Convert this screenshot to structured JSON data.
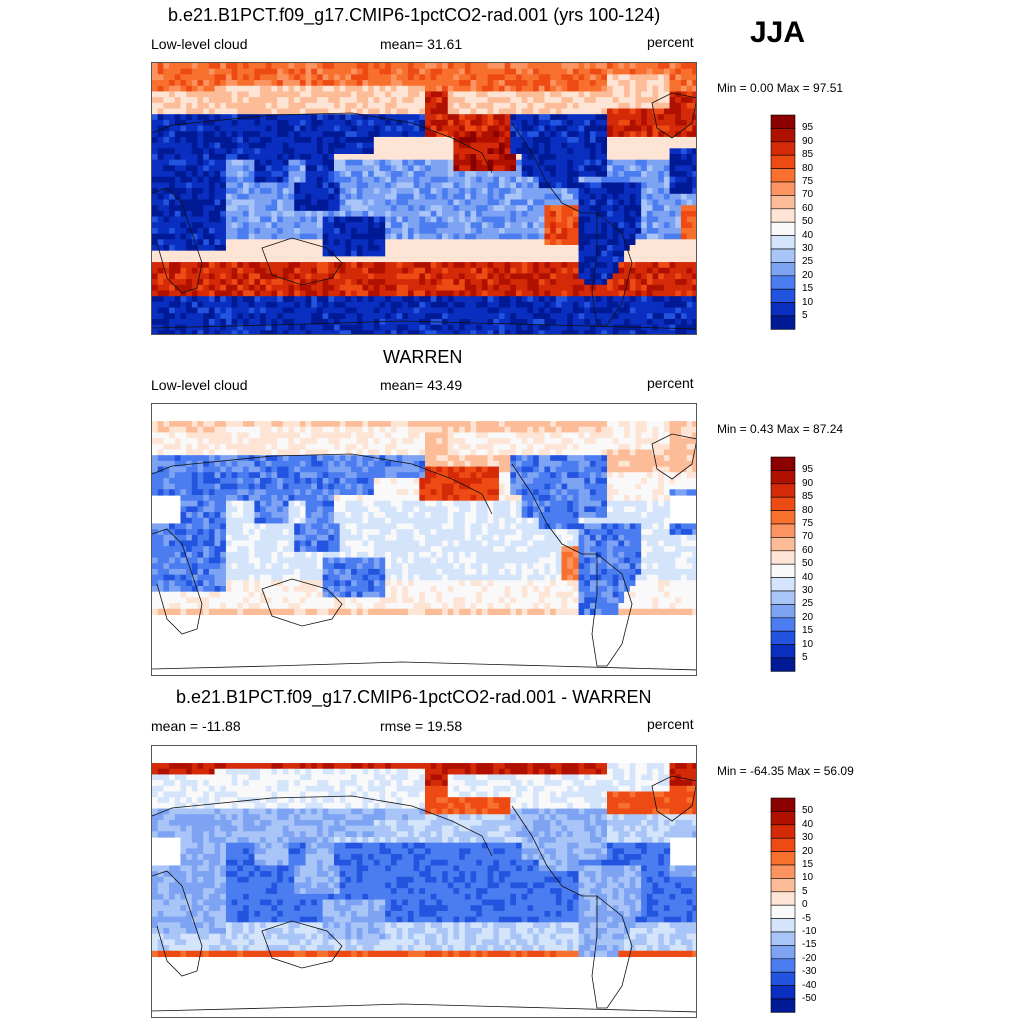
{
  "season": "JJA",
  "panels": [
    {
      "title": "b.e21.B1PCT.f09_g17.CMIP6-1pctCO2-rad.001 (yrs 100-124)",
      "left": "Low-level cloud",
      "center": "mean=  31.61",
      "right": "percent",
      "minmax": "Min =   0.00 Max =  97.51",
      "colorbar": [
        "95",
        "90",
        "85",
        "80",
        "75",
        "70",
        "60",
        "50",
        "40",
        "30",
        "25",
        "20",
        "15",
        "10",
        "5"
      ],
      "colors": [
        "#8b0000",
        "#b01000",
        "#d42a08",
        "#ee4a14",
        "#f8702e",
        "#fb9460",
        "#fcbc98",
        "#fde4d4",
        "#f9f9f9",
        "#d4e5fb",
        "#a9c4f6",
        "#7da3f2",
        "#4b7df0",
        "#2254e0",
        "#0a2fc0",
        "#001a96"
      ],
      "kind": "model"
    },
    {
      "title": "WARREN",
      "left": "Low-level cloud",
      "center": "mean=  43.49",
      "right": "percent",
      "minmax": "Min =   0.43 Max =  87.24",
      "colorbar": [
        "95",
        "90",
        "85",
        "80",
        "75",
        "70",
        "60",
        "50",
        "40",
        "30",
        "25",
        "20",
        "15",
        "10",
        "5"
      ],
      "colors": [
        "#8b0000",
        "#b01000",
        "#d42a08",
        "#ee4a14",
        "#f8702e",
        "#fb9460",
        "#fcbc98",
        "#fde4d4",
        "#f9f9f9",
        "#d4e5fb",
        "#a9c4f6",
        "#7da3f2",
        "#4b7df0",
        "#2254e0",
        "#0a2fc0",
        "#001a96"
      ],
      "kind": "obs"
    },
    {
      "title": "b.e21.B1PCT.f09_g17.CMIP6-1pctCO2-rad.001 - WARREN",
      "left": "mean = -11.88",
      "center": "rmse =  19.58",
      "right": "percent",
      "minmax": "Min = -64.35 Max =  56.09",
      "colorbar": [
        "50",
        "40",
        "30",
        "20",
        "15",
        "10",
        "5",
        "0",
        "-5",
        "-10",
        "-15",
        "-20",
        "-30",
        "-40",
        "-50"
      ],
      "colors": [
        "#8b0000",
        "#b01000",
        "#d42a08",
        "#ee4a14",
        "#f8702e",
        "#fb9460",
        "#fcbc98",
        "#fde4d4",
        "#f9f9f9",
        "#d4e5fb",
        "#a9c4f6",
        "#7da3f2",
        "#4b7df0",
        "#2254e0",
        "#0a2fc0",
        "#001a96"
      ],
      "kind": "diff"
    }
  ]
}
